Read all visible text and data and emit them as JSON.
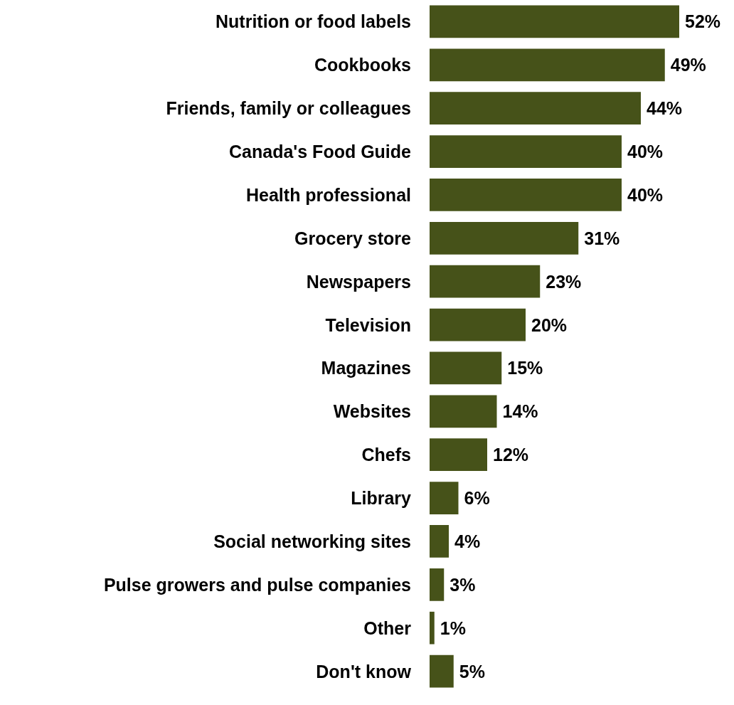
{
  "chart_data": {
    "type": "bar",
    "orientation": "horizontal",
    "categories": [
      "Nutrition or food labels",
      "Cookbooks",
      "Friends, family or colleagues",
      "Canada's Food Guide",
      "Health professional",
      "Grocery store",
      "Newspapers",
      "Television",
      "Magazines",
      "Websites",
      "Chefs",
      "Library",
      "Social networking sites",
      "Pulse growers and pulse companies",
      "Other",
      "Don't know"
    ],
    "values": [
      52,
      49,
      44,
      40,
      40,
      31,
      23,
      20,
      15,
      14,
      12,
      6,
      4,
      3,
      1,
      5
    ],
    "value_labels": [
      "52%",
      "49%",
      "44%",
      "40%",
      "40%",
      "31%",
      "23%",
      "20%",
      "15%",
      "14%",
      "12%",
      "6%",
      "4%",
      "3%",
      "1%",
      "5%"
    ],
    "color": "#465219"
  }
}
